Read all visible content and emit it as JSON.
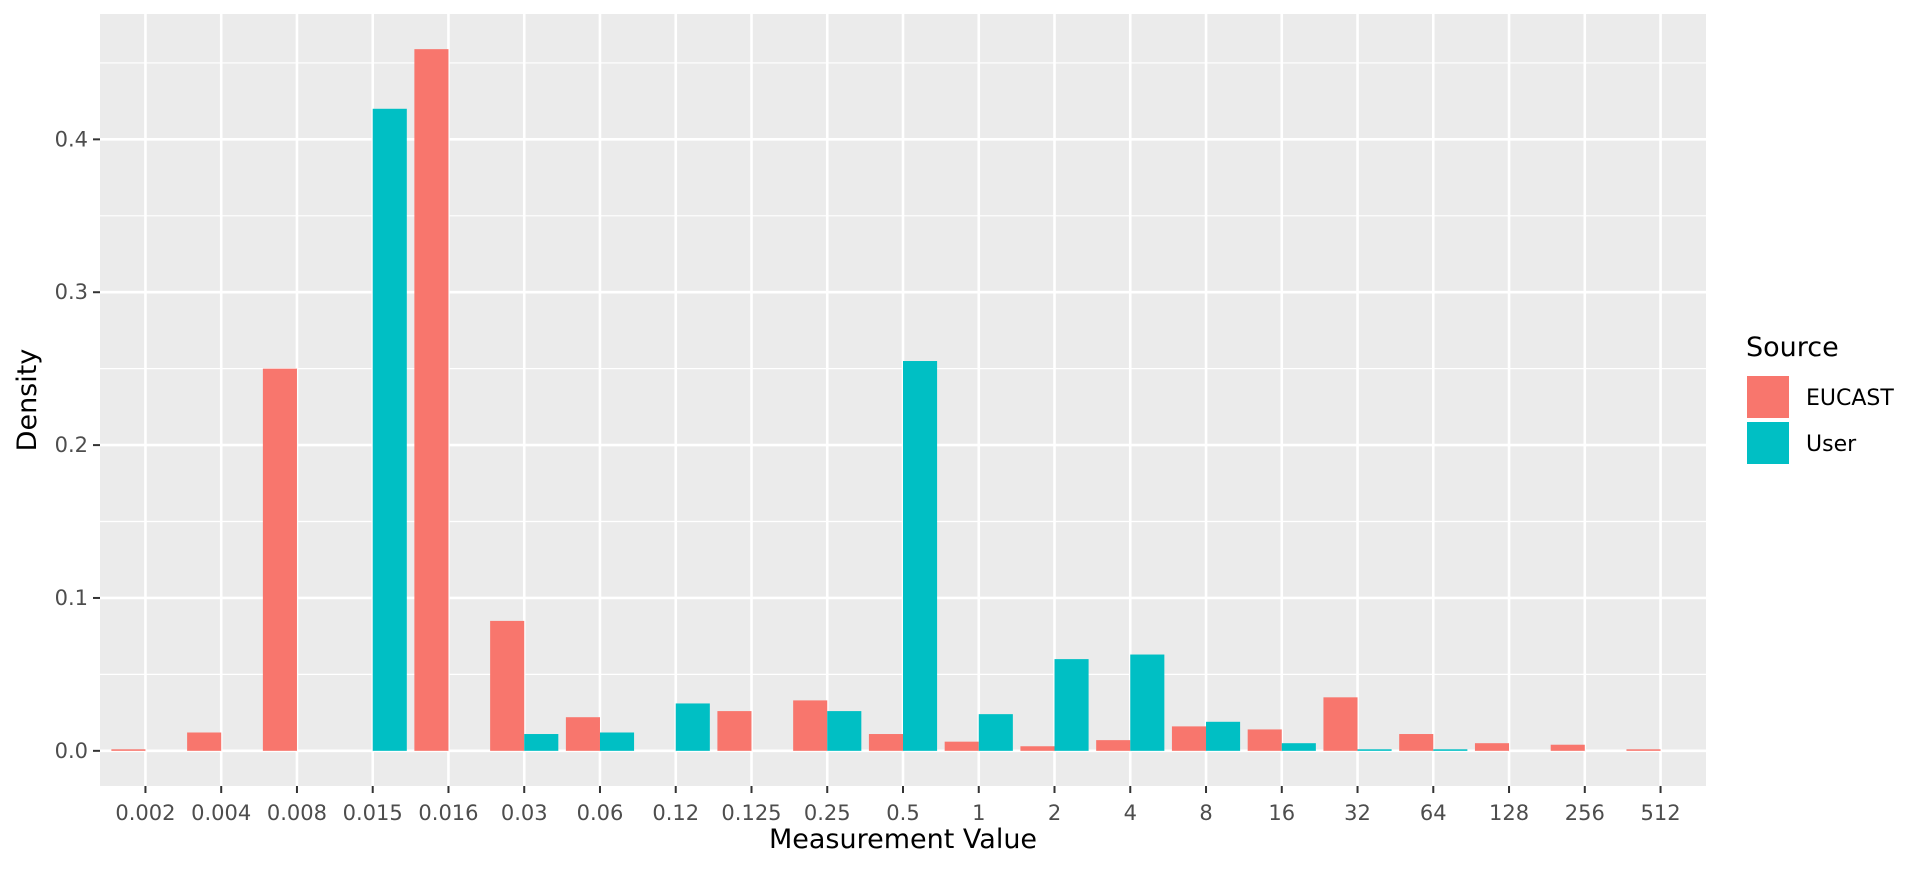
{
  "chart_data": {
    "type": "bar",
    "categories": [
      "0.002",
      "0.004",
      "0.008",
      "0.015",
      "0.016",
      "0.03",
      "0.06",
      "0.12",
      "0.125",
      "0.25",
      "0.5",
      "1",
      "2",
      "4",
      "8",
      "16",
      "32",
      "64",
      "128",
      "256",
      "512"
    ],
    "series": [
      {
        "name": "EUCAST",
        "color": "#F8766D",
        "values": [
          0.001,
          0.012,
          0.25,
          0,
          0.459,
          0.085,
          0.022,
          0,
          0.026,
          0.033,
          0.011,
          0.006,
          0.003,
          0.007,
          0.016,
          0.014,
          0.035,
          0.011,
          0.005,
          0.004,
          0.001
        ]
      },
      {
        "name": "User",
        "color": "#00BFC4",
        "values": [
          0,
          0,
          0,
          0.42,
          0,
          0.011,
          0.012,
          0.031,
          0,
          0.026,
          0.255,
          0.024,
          0.06,
          0.063,
          0.019,
          0.005,
          0.001,
          0.001,
          0,
          0,
          0
        ]
      }
    ],
    "xlabel": "Measurement Value",
    "ylabel": "Density",
    "yticks": [
      "0.0",
      "0.1",
      "0.2",
      "0.3",
      "0.4"
    ],
    "ylim": [
      -0.023,
      0.482
    ],
    "grid": true,
    "panel_color": "#EBEBEB",
    "legend": {
      "title": "Source",
      "placement": "right"
    }
  }
}
